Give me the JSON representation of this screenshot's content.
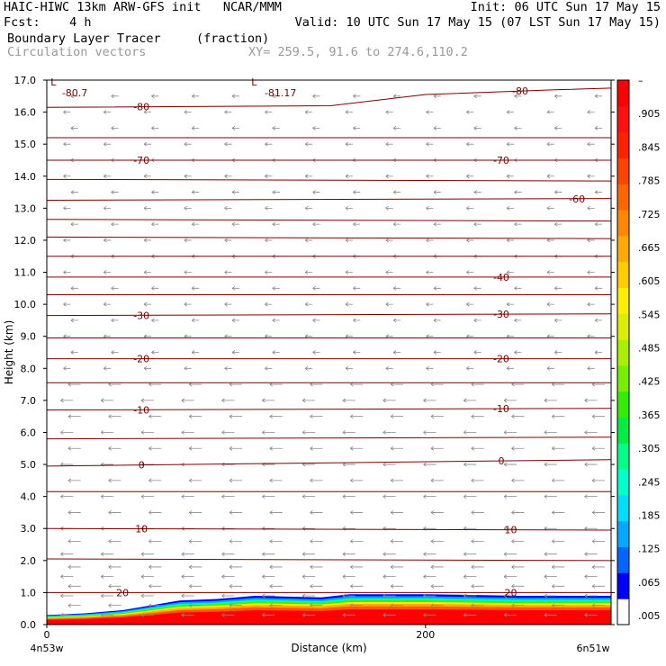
{
  "header": {
    "line1_left": "HAIC-HIWC 13km ARW-GFS init   NCAR/MMM",
    "line1_right": "Init: 06 UTC Sun 17 May 15",
    "line2_left": "Fcst:    4 h",
    "line2_right": "Valid: 10 UTC Sun 17 May 15 (07 LST Sun 17 May 15)",
    "field_name": "Boundary Layer Tracer",
    "field_units": "(fraction)",
    "vector_label": "Circulation vectors",
    "xy_range": "XY= 259.5, 91.6 to 274.6,110.2"
  },
  "chart_data": {
    "type": "heatmap",
    "title": "Boundary Layer Tracer",
    "units": "fraction",
    "xlabel": "Distance (km)",
    "ylabel": "Height (km)",
    "xlim": [
      0,
      298
    ],
    "ylim": [
      0,
      17
    ],
    "x_ticks": [
      {
        "value": 0,
        "label": "0"
      },
      {
        "value": 200,
        "label": "200"
      }
    ],
    "x_endpoints": {
      "left": "4n53w",
      "right": "6n51w"
    },
    "y_ticks": [
      {
        "value": 0,
        "label": "0.0"
      },
      {
        "value": 1,
        "label": "1.0"
      },
      {
        "value": 2,
        "label": "2.0"
      },
      {
        "value": 3,
        "label": "3.0"
      },
      {
        "value": 4,
        "label": "4.0"
      },
      {
        "value": 5,
        "label": "5.0"
      },
      {
        "value": 6,
        "label": "6.0"
      },
      {
        "value": 7,
        "label": "7.0"
      },
      {
        "value": 8,
        "label": "8.0"
      },
      {
        "value": 9,
        "label": "9.0"
      },
      {
        "value": 10,
        "label": "10.0"
      },
      {
        "value": 11,
        "label": "11.0"
      },
      {
        "value": 12,
        "label": "12.0"
      },
      {
        "value": 13,
        "label": "13.0"
      },
      {
        "value": 14,
        "label": "14.0"
      },
      {
        "value": 15,
        "label": "15.0"
      },
      {
        "value": 16,
        "label": "16.0"
      },
      {
        "value": 17,
        "label": "17.0"
      }
    ],
    "colorbar": {
      "labels": [
        ".005",
        ".065",
        ".125",
        ".185",
        ".245",
        ".305",
        ".365",
        ".425",
        ".485",
        ".545",
        ".605",
        ".665",
        ".725",
        ".785",
        ".845",
        ".905",
        "–"
      ],
      "colors": [
        "#ffffff",
        "#0000ff",
        "#0066ff",
        "#00aaff",
        "#00ddff",
        "#00ffcc",
        "#00ff88",
        "#00ee44",
        "#33ee00",
        "#77ee00",
        "#aaee00",
        "#ddee00",
        "#ffee00",
        "#ffcc00",
        "#ffaa00",
        "#ff8800",
        "#ff6600",
        "#ff4400",
        "#ff2200",
        "#ff1010",
        "#ff0000"
      ]
    },
    "tracer_layer": [
      {
        "x": 0,
        "top": 0.3
      },
      {
        "x": 20,
        "top": 0.35
      },
      {
        "x": 40,
        "top": 0.45
      },
      {
        "x": 55,
        "top": 0.6
      },
      {
        "x": 70,
        "top": 0.75
      },
      {
        "x": 90,
        "top": 0.8
      },
      {
        "x": 110,
        "top": 0.9
      },
      {
        "x": 145,
        "top": 0.85
      },
      {
        "x": 160,
        "top": 0.95
      },
      {
        "x": 200,
        "top": 0.95
      },
      {
        "x": 250,
        "top": 0.9
      },
      {
        "x": 298,
        "top": 0.9
      }
    ],
    "temperature_contours": [
      {
        "label": "20",
        "points": [
          [
            0,
            1.0
          ],
          [
            298,
            1.0
          ]
        ],
        "label_x": [
          40,
          245
        ]
      },
      {
        "label": "",
        "points": [
          [
            0,
            2.05
          ],
          [
            298,
            2.0
          ]
        ]
      },
      {
        "label": "10",
        "points": [
          [
            0,
            3.0
          ],
          [
            298,
            2.95
          ]
        ],
        "label_x": [
          50,
          245
        ]
      },
      {
        "label": "",
        "points": [
          [
            0,
            4.15
          ],
          [
            298,
            4.15
          ]
        ]
      },
      {
        "label": "0",
        "points": [
          [
            0,
            4.95
          ],
          [
            298,
            5.15
          ]
        ],
        "label_x": [
          50,
          240
        ]
      },
      {
        "label": "",
        "points": [
          [
            0,
            5.8
          ],
          [
            298,
            5.85
          ]
        ]
      },
      {
        "label": "-10",
        "points": [
          [
            0,
            6.7
          ],
          [
            298,
            6.75
          ]
        ],
        "label_x": [
          50,
          240
        ]
      },
      {
        "label": "",
        "points": [
          [
            0,
            7.55
          ],
          [
            298,
            7.55
          ]
        ]
      },
      {
        "label": "-20",
        "points": [
          [
            0,
            8.3
          ],
          [
            298,
            8.3
          ]
        ],
        "label_x": [
          50,
          240
        ]
      },
      {
        "label": "",
        "points": [
          [
            0,
            8.95
          ],
          [
            298,
            8.95
          ]
        ]
      },
      {
        "label": "-30",
        "points": [
          [
            0,
            9.65
          ],
          [
            298,
            9.7
          ]
        ],
        "label_x": [
          50,
          240
        ]
      },
      {
        "label": "",
        "points": [
          [
            0,
            10.3
          ],
          [
            298,
            10.3
          ]
        ]
      },
      {
        "label": "-40",
        "points": [
          [
            0,
            10.85
          ],
          [
            298,
            10.85
          ]
        ],
        "label_x": [
          240
        ]
      },
      {
        "label": "",
        "points": [
          [
            0,
            11.5
          ],
          [
            298,
            11.5
          ]
        ]
      },
      {
        "label": "",
        "points": [
          [
            0,
            12.1
          ],
          [
            298,
            12.05
          ]
        ]
      },
      {
        "label": "",
        "points": [
          [
            0,
            12.65
          ],
          [
            298,
            12.6
          ]
        ]
      },
      {
        "label": "-60",
        "points": [
          [
            0,
            13.25
          ],
          [
            298,
            13.3
          ]
        ],
        "label_x": [
          280
        ]
      },
      {
        "label": "",
        "points": [
          [
            0,
            13.9
          ],
          [
            298,
            13.85
          ]
        ]
      },
      {
        "label": "-70",
        "points": [
          [
            0,
            14.5
          ],
          [
            298,
            14.5
          ]
        ],
        "label_x": [
          50,
          240
        ]
      },
      {
        "label": "",
        "points": [
          [
            0,
            15.2
          ],
          [
            298,
            15.2
          ]
        ]
      },
      {
        "label": "-80",
        "points": [
          [
            0,
            16.15
          ],
          [
            150,
            16.2
          ],
          [
            200,
            16.55
          ],
          [
            270,
            16.7
          ],
          [
            298,
            16.75
          ]
        ],
        "label_x": [
          50,
          250
        ]
      }
    ],
    "annotations": [
      {
        "text": "L",
        "x": 2,
        "y": 16.95
      },
      {
        "text": "-80.7",
        "x": 8,
        "y": 16.6
      },
      {
        "text": "L",
        "x": 108,
        "y": 16.95
      },
      {
        "text": "-81.17",
        "x": 115,
        "y": 16.6
      }
    ],
    "vectors": {
      "x_count": 14,
      "y_levels": [
        0.3,
        0.6,
        0.9,
        1.2,
        1.5,
        1.8,
        2.2,
        2.6,
        3.0,
        3.5,
        4.0,
        4.5,
        5.0,
        5.5,
        6.0,
        6.5,
        7.0,
        7.5,
        8.0,
        8.5,
        9.0,
        9.5,
        10.0,
        10.5,
        11.0,
        11.5,
        12.0,
        12.5,
        13.0,
        13.5,
        14.0,
        14.5,
        15.0,
        15.5,
        16.0,
        16.5
      ],
      "color": "#8a8a8a"
    }
  }
}
